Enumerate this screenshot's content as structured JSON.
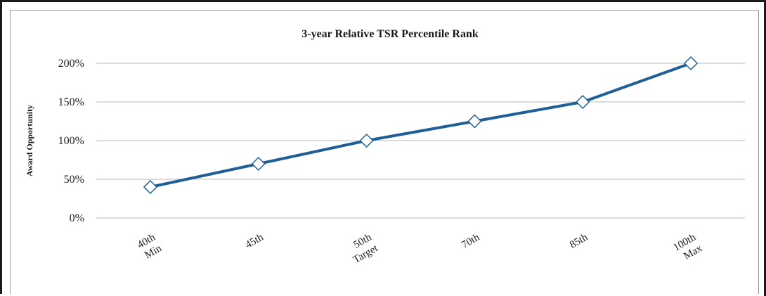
{
  "chart_data": {
    "type": "line",
    "title": "3-year Relative TSR Percentile Rank",
    "xlabel": "",
    "ylabel": "Award Opportunity",
    "categories": [
      [
        "40th",
        "Min"
      ],
      [
        "45th"
      ],
      [
        "50th",
        "Target"
      ],
      [
        "70th"
      ],
      [
        "85th"
      ],
      [
        "100th",
        "Max"
      ]
    ],
    "y_ticks": [
      "0%",
      "50%",
      "100%",
      "150%",
      "200%"
    ],
    "ylim": [
      0,
      200
    ],
    "y_unit": "%",
    "series": [
      {
        "values": [
          40,
          70,
          100,
          125,
          150,
          200
        ]
      }
    ],
    "grid": true,
    "legend": "none",
    "line_color": "#1f5f96",
    "marker": "diamond",
    "marker_fill": "#ffffff"
  }
}
